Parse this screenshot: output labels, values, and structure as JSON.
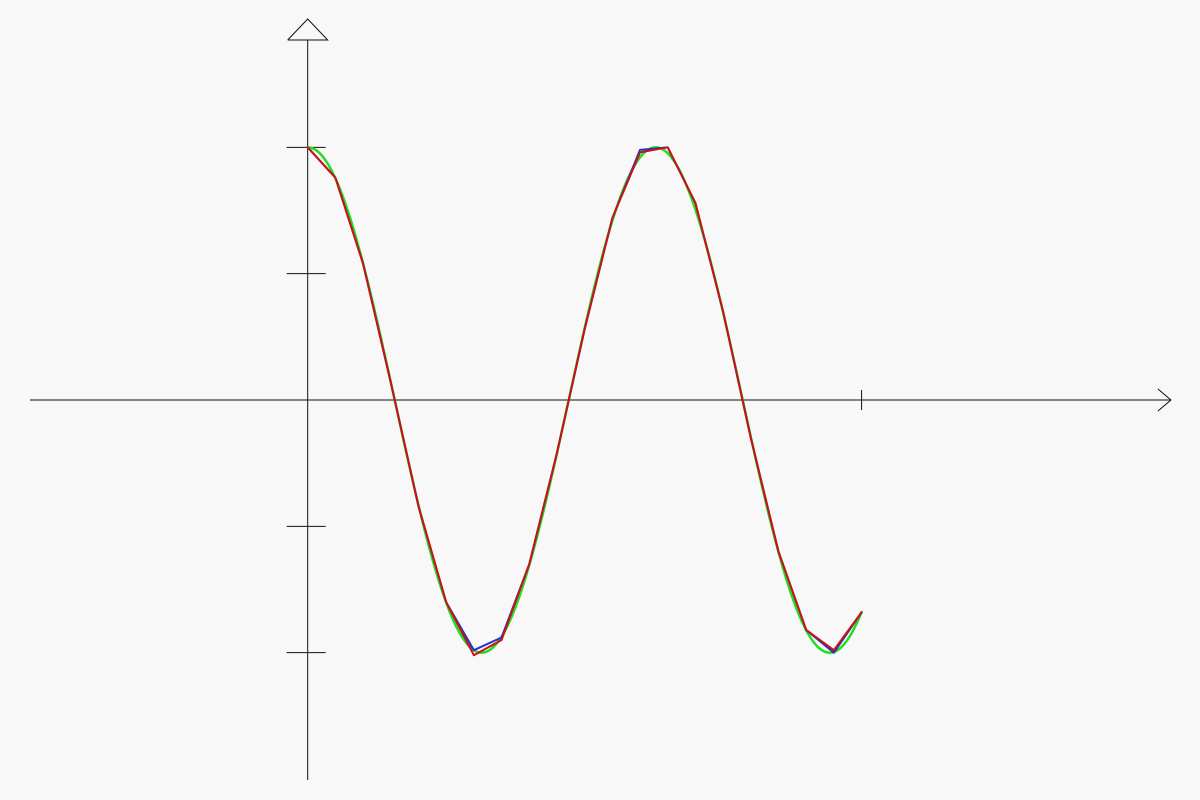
{
  "chart_data": {
    "type": "line",
    "title": "",
    "xlabel": "",
    "ylabel": "",
    "grid": false,
    "legend": "none",
    "xlim": [
      -1.111,
      3.222
    ],
    "ylim": [
      -1.583,
      1.583
    ],
    "x_ticks": [
      2
    ],
    "y_ticks": [
      -1,
      -0.5,
      0.5,
      1
    ],
    "series": [
      {
        "color": "#22dd22",
        "style": "smooth",
        "function": "cos(5x)",
        "x_range": [
          0,
          2
        ]
      },
      {
        "color": "#2233cc",
        "style": "polyline",
        "x": [
          0,
          0.1,
          0.2,
          0.3,
          0.4,
          0.5,
          0.6,
          0.7,
          0.8,
          0.9,
          1.0,
          1.1,
          1.2,
          1.3,
          1.4,
          1.5,
          1.6,
          1.7,
          1.8,
          1.9,
          2.0
        ],
        "y": [
          1.0,
          0.88,
          0.54,
          0.07,
          -0.42,
          -0.8,
          -0.99,
          -0.94,
          -0.65,
          -0.21,
          0.28,
          0.72,
          0.99,
          1.0,
          0.78,
          0.35,
          -0.15,
          -0.6,
          -0.91,
          -1.0,
          -0.84
        ]
      },
      {
        "color": "#cc1111",
        "style": "polyline",
        "x": [
          0,
          0.1,
          0.2,
          0.3,
          0.4,
          0.5,
          0.6,
          0.7,
          0.8,
          0.9,
          1.0,
          1.1,
          1.2,
          1.3,
          1.4,
          1.5,
          1.6,
          1.7,
          1.8,
          1.9,
          2.0
        ],
        "y": [
          1.0,
          0.88,
          0.54,
          0.07,
          -0.42,
          -0.8,
          -1.01,
          -0.95,
          -0.65,
          -0.21,
          0.28,
          0.72,
          0.98,
          1.0,
          0.78,
          0.35,
          -0.15,
          -0.6,
          -0.91,
          -0.99,
          -0.84
        ]
      }
    ]
  }
}
